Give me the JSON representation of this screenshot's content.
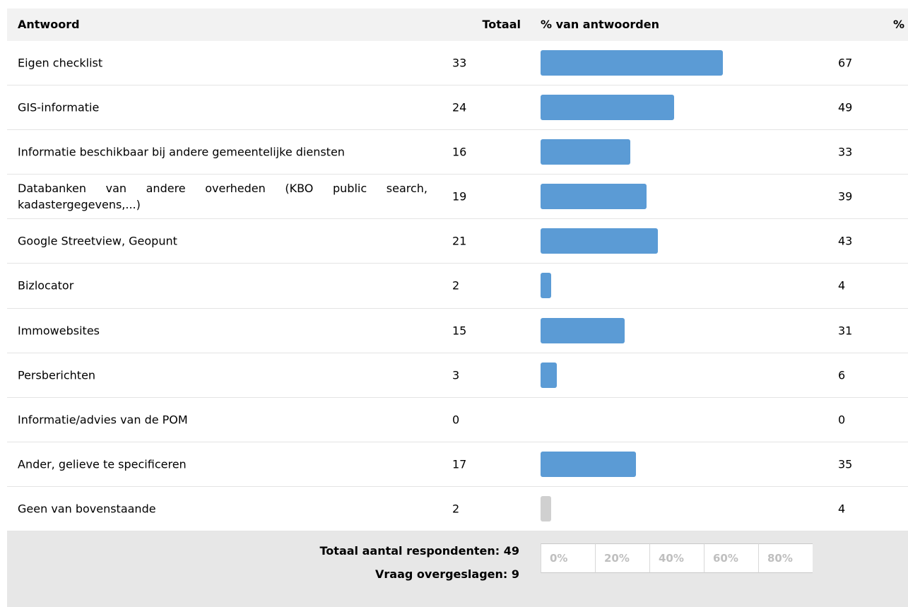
{
  "table": {
    "headers": [
      "Antwoord",
      "Totaal",
      "% van antwoorden",
      "%"
    ],
    "rows": [
      {
        "label": "Eigen checklist",
        "total": 33,
        "percent": 67,
        "color": "#5b9bd5"
      },
      {
        "label": "GIS-informatie",
        "total": 24,
        "percent": 49,
        "color": "#5b9bd5"
      },
      {
        "label": "Informatie beschikbaar bij andere gemeentelijke diensten",
        "total": 16,
        "percent": 33,
        "color": "#5b9bd5"
      },
      {
        "label": "Databanken van andere overheden (KBO public search, kadastergegevens,...)",
        "total": 19,
        "percent": 39,
        "color": "#5b9bd5"
      },
      {
        "label": "Google Streetview, Geopunt",
        "total": 21,
        "percent": 43,
        "color": "#5b9bd5"
      },
      {
        "label": "Bizlocator",
        "total": 2,
        "percent": 4,
        "color": "#5b9bd5"
      },
      {
        "label": "Immowebsites",
        "total": 15,
        "percent": 31,
        "color": "#5b9bd5"
      },
      {
        "label": "Persberichten",
        "total": 3,
        "percent": 6,
        "color": "#5b9bd5"
      },
      {
        "label": "Informatie/advies van de POM",
        "total": 0,
        "percent": 0,
        "color": "#5b9bd5"
      },
      {
        "label": "Ander, gelieve te specificeren",
        "total": 17,
        "percent": 35,
        "color": "#5b9bd5"
      },
      {
        "label": "Geen van bovenstaande",
        "total": 2,
        "percent": 4,
        "color": "#d0d0d0"
      }
    ],
    "xlim": [
      0,
      100
    ],
    "xticks": [
      {
        "value": 0,
        "label": "0%"
      },
      {
        "value": 20,
        "label": "20%"
      },
      {
        "value": 40,
        "label": "40%"
      },
      {
        "value": 60,
        "label": "60%"
      },
      {
        "value": 80,
        "label": "80%"
      }
    ],
    "footer": [
      "Totaal aantal respondenten: 49",
      "Vraag overgeslagen: 9"
    ]
  }
}
